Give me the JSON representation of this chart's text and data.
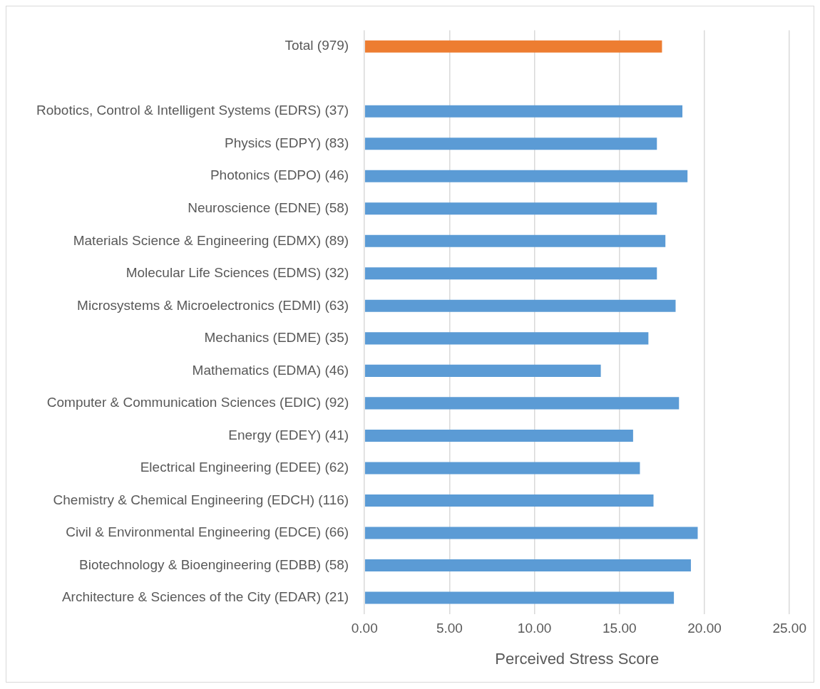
{
  "chart_data": {
    "type": "bar",
    "orientation": "horizontal",
    "xlabel": "Perceived Stress Score",
    "categories": [
      "Total (979)",
      null,
      "Robotics, Control & Intelligent Systems (EDRS) (37)",
      "Physics (EDPY) (83)",
      "Photonics (EDPO) (46)",
      "Neuroscience (EDNE) (58)",
      "Materials Science & Engineering (EDMX) (89)",
      "Molecular Life Sciences (EDMS) (32)",
      "Microsystems & Microelectronics (EDMI) (63)",
      "Mechanics (EDME) (35)",
      "Mathematics (EDMA) (46)",
      "Computer & Communication Sciences (EDIC) (92)",
      "Energy (EDEY) (41)",
      "Electrical Engineering (EDEE) (62)",
      "Chemistry & Chemical Engineering (EDCH) (116)",
      "Civil & Environmental Engineering (EDCE) (66)",
      "Biotechnology & Bioengineering (EDBB) (58)",
      "Architecture & Sciences of the City (EDAR) (21)"
    ],
    "values": [
      17.5,
      null,
      18.7,
      17.2,
      19.0,
      17.2,
      17.7,
      17.2,
      18.3,
      16.7,
      13.9,
      18.5,
      15.8,
      16.2,
      17.0,
      19.6,
      19.2,
      18.2
    ],
    "colors": [
      "#ed7d31",
      null,
      "#5b9bd5",
      "#5b9bd5",
      "#5b9bd5",
      "#5b9bd5",
      "#5b9bd5",
      "#5b9bd5",
      "#5b9bd5",
      "#5b9bd5",
      "#5b9bd5",
      "#5b9bd5",
      "#5b9bd5",
      "#5b9bd5",
      "#5b9bd5",
      "#5b9bd5",
      "#5b9bd5",
      "#5b9bd5"
    ],
    "xlim": [
      0,
      25
    ],
    "xticks": [
      {
        "value": 0,
        "label": "0.00"
      },
      {
        "value": 5,
        "label": "5.00"
      },
      {
        "value": 10,
        "label": "10.00"
      },
      {
        "value": 15,
        "label": "15.00"
      },
      {
        "value": 20,
        "label": "20.00"
      },
      {
        "value": 25,
        "label": "25.00"
      }
    ],
    "grid": "x",
    "legend": false
  }
}
